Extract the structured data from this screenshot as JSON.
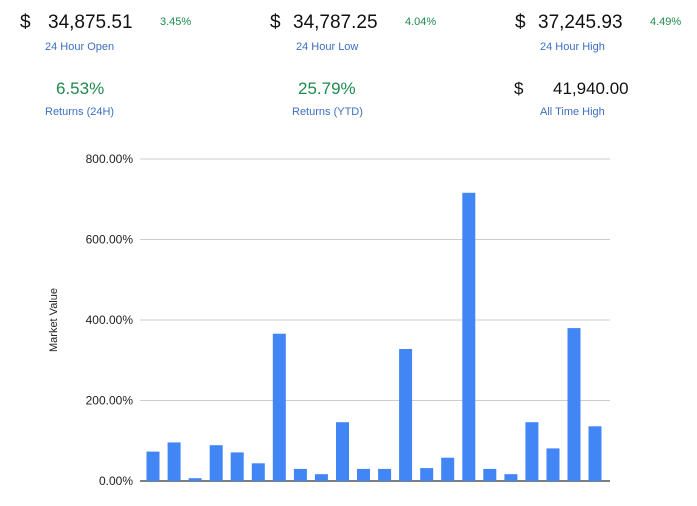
{
  "stats": {
    "open": {
      "currency": "$",
      "value": "34,875.51",
      "change": "3.45%",
      "label": "24 Hour Open"
    },
    "low": {
      "currency": "$",
      "value": "34,787.25",
      "change": "4.04%",
      "label": "24 Hour Low"
    },
    "high": {
      "currency": "$",
      "value": "37,245.93",
      "change": "4.49%",
      "label": "24 Hour High"
    },
    "returns24h": {
      "value": "6.53%",
      "label": "Returns (24H)"
    },
    "returnsYtd": {
      "value": "25.79%",
      "label": "Returns (YTD)"
    },
    "ath": {
      "currency": "$",
      "value": "41,940.00",
      "label": "All Time High"
    }
  },
  "colors": {
    "bar": "#4285f4",
    "positive": "#1e8a4c",
    "caption": "#3b6fc4",
    "grid": "#cccccc"
  },
  "chart_data": {
    "type": "bar",
    "ylabel": "Market Value",
    "ylim": [
      0,
      800
    ],
    "yticks": [
      0,
      200,
      400,
      600,
      800
    ],
    "ytick_labels": [
      "0.00%",
      "200.00%",
      "400.00%",
      "600.00%",
      "800.00%"
    ],
    "grid": true,
    "values": [
      73,
      96,
      7,
      89,
      71,
      44,
      366,
      30,
      17,
      146,
      30,
      30,
      328,
      32,
      58,
      716,
      30,
      17,
      146,
      81,
      380,
      136
    ]
  }
}
